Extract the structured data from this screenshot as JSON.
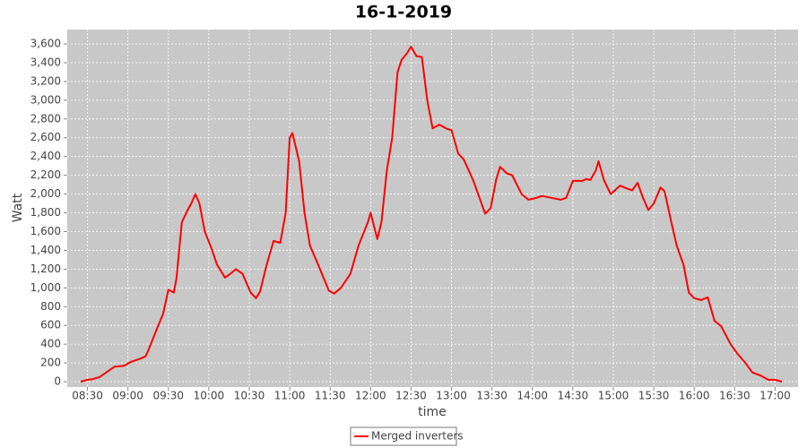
{
  "chart_data": {
    "type": "line",
    "title": "16-1-2019",
    "x_label": "time",
    "y_label": "Watt",
    "x": [
      "08:25",
      "08:30",
      "08:33",
      "08:39",
      "08:44",
      "08:50",
      "08:57",
      "09:02",
      "09:08",
      "09:13",
      "09:15",
      "09:22",
      "09:26",
      "09:30",
      "09:34",
      "09:36",
      "09:40",
      "09:44",
      "09:47",
      "09:50",
      "09:53",
      "09:57",
      "10:02",
      "10:06",
      "10:12",
      "10:16",
      "10:20",
      "10:25",
      "10:31",
      "10:35",
      "10:38",
      "10:43",
      "10:48",
      "10:53",
      "10:57",
      "11:00",
      "11:02",
      "11:07",
      "11:11",
      "11:15",
      "11:21",
      "11:29",
      "11:33",
      "11:38",
      "11:45",
      "11:51",
      "11:58",
      "12:00",
      "12:05",
      "12:08",
      "12:12",
      "12:16",
      "12:20",
      "12:23",
      "12:27",
      "12:30",
      "12:34",
      "12:38",
      "12:42",
      "12:46",
      "12:51",
      "12:56",
      "13:00",
      "13:05",
      "13:09",
      "13:16",
      "13:21",
      "13:25",
      "13:29",
      "13:33",
      "13:36",
      "13:41",
      "13:45",
      "13:52",
      "13:57",
      "14:03",
      "14:07",
      "14:14",
      "14:21",
      "14:25",
      "14:30",
      "14:37",
      "14:40",
      "14:43",
      "14:47",
      "14:49",
      "14:53",
      "14:58",
      "15:05",
      "15:10",
      "15:14",
      "15:18",
      "15:22",
      "15:26",
      "15:30",
      "15:35",
      "15:38",
      "15:43",
      "15:47",
      "15:52",
      "15:56",
      "16:00",
      "16:05",
      "16:10",
      "16:15",
      "16:20",
      "16:27",
      "16:32",
      "16:38",
      "16:43",
      "16:50",
      "16:55",
      "17:00",
      "17:05"
    ],
    "series": [
      {
        "name": "Merged inverters",
        "color": "#ff0000",
        "values": [
          0,
          20,
          25,
          50,
          100,
          160,
          170,
          210,
          240,
          270,
          330,
          580,
          720,
          980,
          950,
          1100,
          1700,
          1820,
          1900,
          2000,
          1900,
          1600,
          1420,
          1250,
          1110,
          1150,
          1200,
          1150,
          950,
          890,
          960,
          1250,
          1500,
          1480,
          1800,
          2600,
          2650,
          2350,
          1800,
          1450,
          1250,
          970,
          940,
          1000,
          1150,
          1450,
          1700,
          1800,
          1520,
          1700,
          2250,
          2600,
          3300,
          3430,
          3500,
          3570,
          3470,
          3460,
          3000,
          2700,
          2740,
          2700,
          2680,
          2430,
          2370,
          2150,
          1950,
          1790,
          1850,
          2150,
          2290,
          2220,
          2200,
          2000,
          1940,
          1960,
          1980,
          1960,
          1940,
          1960,
          2140,
          2140,
          2160,
          2150,
          2250,
          2350,
          2150,
          2000,
          2090,
          2060,
          2040,
          2120,
          1960,
          1830,
          1900,
          2070,
          2030,
          1700,
          1450,
          1250,
          950,
          890,
          870,
          900,
          650,
          590,
          400,
          300,
          200,
          100,
          60,
          20,
          20,
          0
        ]
      }
    ],
    "xlim": [
      "08:15",
      "17:17"
    ],
    "xticks": [
      "08:30",
      "09:00",
      "09:30",
      "10:00",
      "10:30",
      "11:00",
      "11:30",
      "12:00",
      "12:30",
      "13:00",
      "13:30",
      "14:00",
      "14:30",
      "15:00",
      "15:30",
      "16:00",
      "16:30",
      "17:00"
    ],
    "ylim": [
      -57,
      3753
    ],
    "yticks": [
      0,
      200,
      400,
      600,
      800,
      {
        "value": 1000,
        "label": "1,000"
      },
      {
        "value": 1200,
        "label": "1,200"
      },
      {
        "value": 1400,
        "label": "1,400"
      },
      {
        "value": 1600,
        "label": "1,600"
      },
      {
        "value": 1800,
        "label": "1,800"
      },
      {
        "value": 2000,
        "label": "2,000"
      },
      {
        "value": 2200,
        "label": "2,200"
      },
      {
        "value": 2400,
        "label": "2,400"
      },
      {
        "value": 2600,
        "label": "2,600"
      },
      {
        "value": 2800,
        "label": "2,800"
      },
      {
        "value": 3000,
        "label": "3,000"
      },
      {
        "value": 3200,
        "label": "3,200"
      },
      {
        "value": 3400,
        "label": "3,400"
      },
      {
        "value": 3600,
        "label": "3,600"
      }
    ],
    "grid": true,
    "legend": "bottom"
  }
}
